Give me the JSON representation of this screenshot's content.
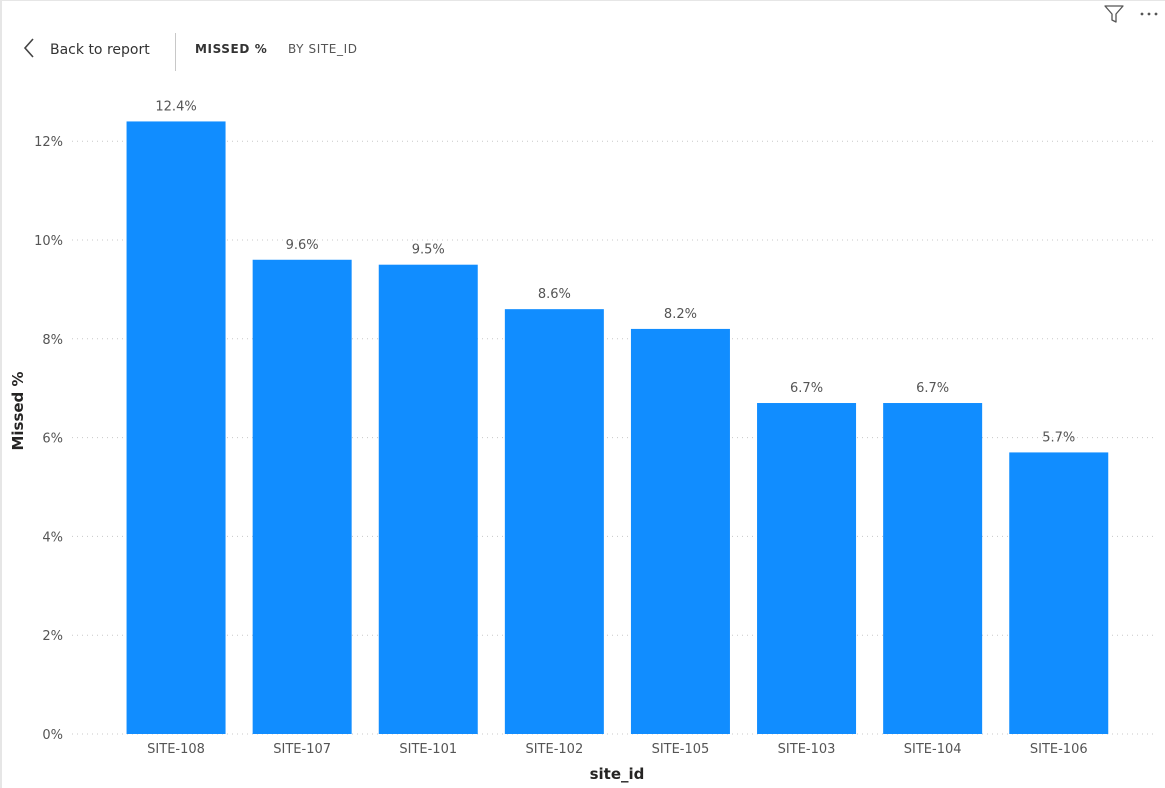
{
  "toolbar": {
    "filter_icon": "filter-icon",
    "more_icon": "more-options-icon"
  },
  "header": {
    "back_icon": "chevron-left-icon",
    "back_label": "Back to report",
    "title": "MISSED %",
    "subtitle": "BY SITE_ID"
  },
  "colors": {
    "bar": "#118DFF",
    "grid": "#c8c8c8",
    "text": "#555555"
  },
  "chart_data": {
    "type": "bar",
    "title": "",
    "xlabel": "site_id",
    "ylabel": "Missed %",
    "categories": [
      "SITE-108",
      "SITE-107",
      "SITE-101",
      "SITE-102",
      "SITE-105",
      "SITE-103",
      "SITE-104",
      "SITE-106"
    ],
    "values": [
      12.4,
      9.6,
      9.5,
      8.6,
      8.2,
      6.7,
      6.7,
      5.7
    ],
    "data_labels": [
      "12.4%",
      "9.6%",
      "9.5%",
      "8.6%",
      "8.2%",
      "6.7%",
      "6.7%",
      "5.7%"
    ],
    "ylim": [
      0,
      12
    ],
    "yticks": [
      0,
      2,
      4,
      6,
      8,
      10,
      12
    ],
    "ytick_labels": [
      "0%",
      "2%",
      "4%",
      "6%",
      "8%",
      "10%",
      "12%"
    ],
    "grid": true
  }
}
